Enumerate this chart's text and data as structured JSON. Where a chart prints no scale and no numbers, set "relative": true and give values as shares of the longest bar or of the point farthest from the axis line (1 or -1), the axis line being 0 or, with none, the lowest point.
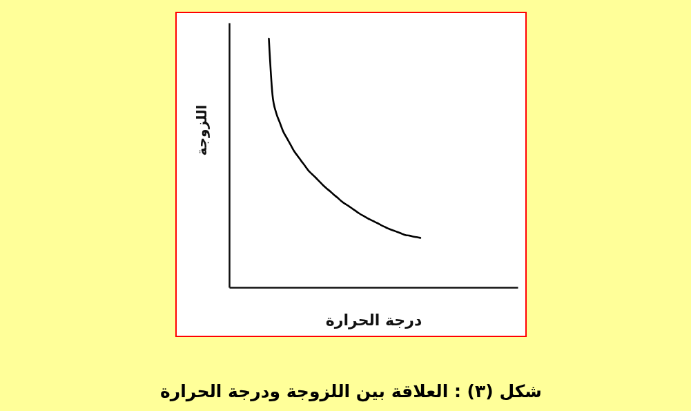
{
  "chart_data": {
    "type": "line",
    "title": "شكل (٣) : العلاقة بين اللزوجة ودرجة الحرارة",
    "xlabel": "درجة الحرارة",
    "ylabel": "اللزوجة",
    "relative": true,
    "categories": [
      null,
      null,
      null,
      null,
      null,
      null,
      null,
      null,
      null,
      null,
      null,
      null,
      null,
      null,
      null,
      null,
      null,
      null,
      null,
      null,
      null,
      null,
      null,
      null,
      null,
      null,
      null,
      null,
      null,
      null,
      null,
      null,
      null,
      null,
      null,
      null,
      null,
      null,
      null,
      null,
      null,
      null,
      null,
      null,
      null,
      null,
      null,
      null,
      null,
      null,
      null,
      null,
      null,
      null,
      null,
      null,
      null,
      null,
      null,
      null,
      null,
      null,
      null,
      null,
      null,
      null,
      null,
      null,
      null,
      null,
      null,
      null,
      null,
      null,
      null,
      null,
      null,
      null,
      null,
      null,
      null
    ],
    "series": [
      {
        "color": "#000000",
        "values": [
          null,
          null,
          null,
          null,
          null,
          null,
          null,
          null,
          null,
          null,
          null,
          1,
          0.775,
          0.703,
          0.664,
          0.626,
          0.6,
          0.574,
          0.548,
          0.528,
          0.508,
          0.489,
          0.469,
          0.455,
          0.441,
          0.426,
          0.411,
          0.398,
          0.386,
          0.373,
          0.361,
          0.348,
          0.337,
          0.328,
          0.318,
          0.308,
          0.298,
          0.289,
          0.281,
          0.273,
          0.266,
          0.259,
          0.251,
          0.244,
          0.237,
          0.231,
          0.226,
          0.221,
          0.215,
          0.21,
          0.208,
          0.204,
          0.202,
          0.199,
          null,
          null,
          null,
          null,
          null,
          null,
          null,
          null,
          null,
          null,
          null,
          null,
          null,
          null,
          null,
          null,
          null,
          null,
          null,
          null,
          null,
          null,
          null,
          null,
          null,
          null,
          null
        ]
      }
    ],
    "line_style": "solid"
  }
}
